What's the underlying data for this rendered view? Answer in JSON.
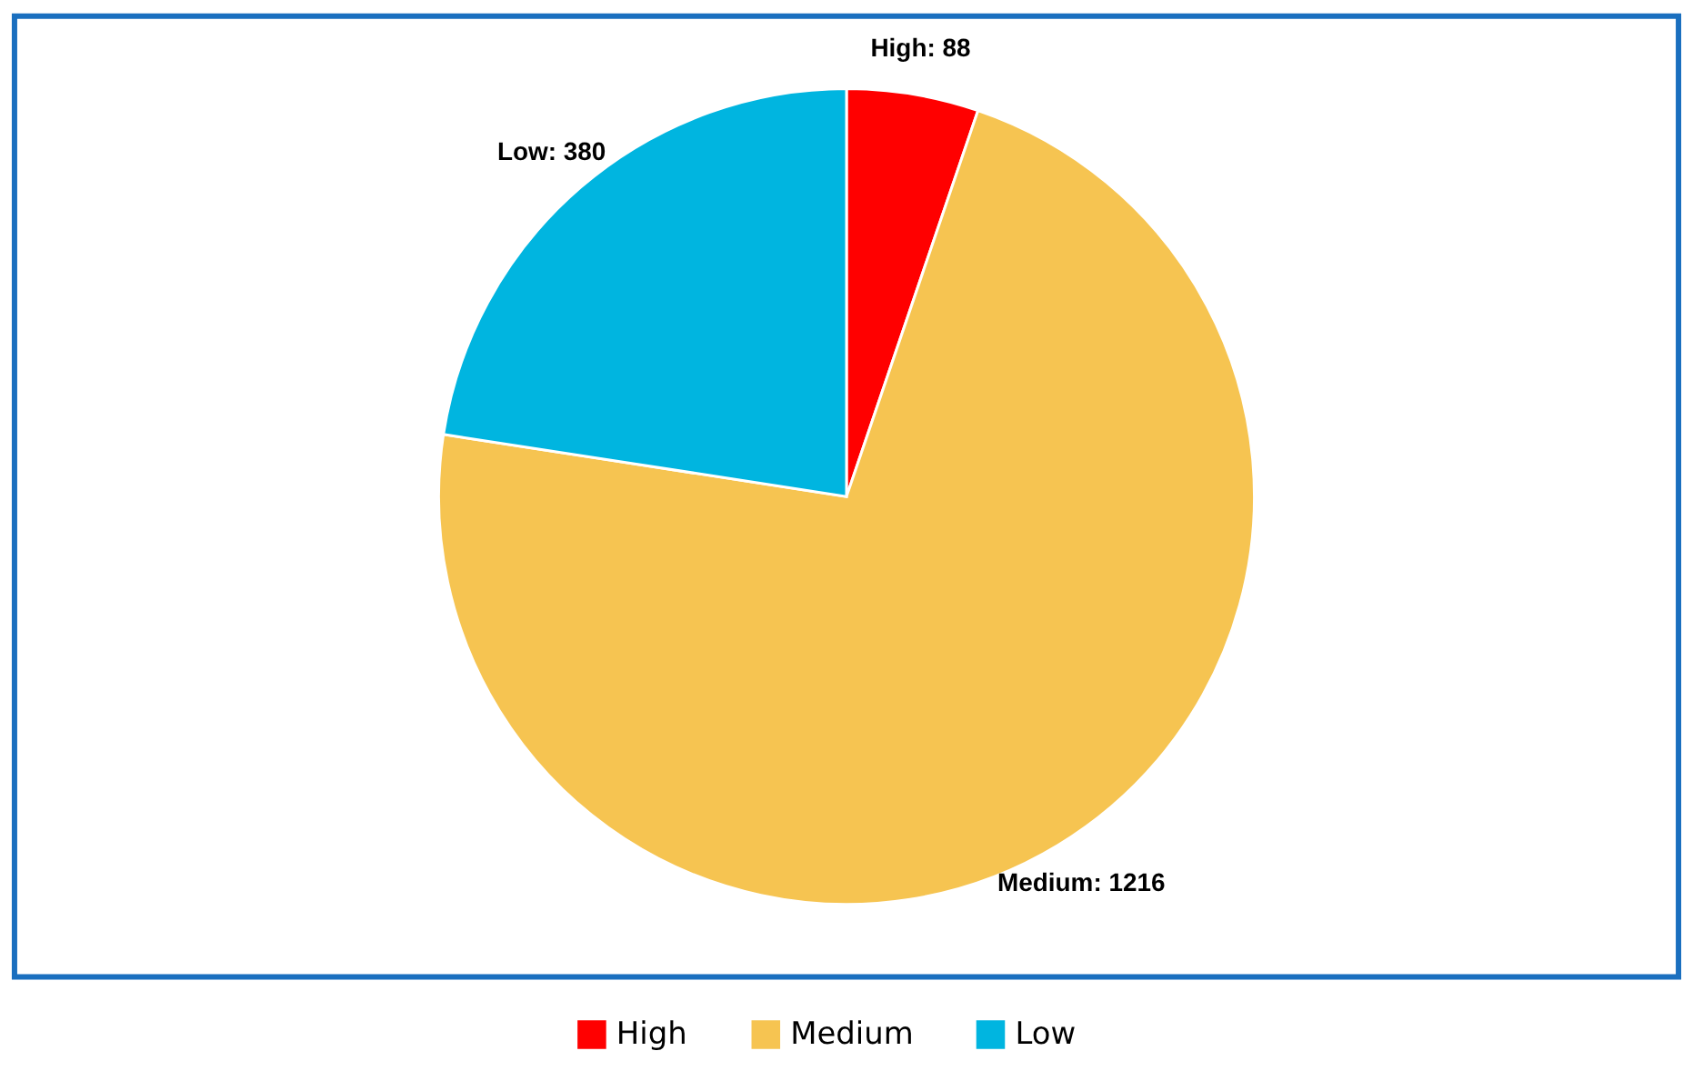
{
  "chart_data": {
    "type": "pie",
    "categories": [
      "High",
      "Medium",
      "Low"
    ],
    "values": [
      88,
      1216,
      380
    ],
    "value_labels": [
      "High: 88",
      "Medium: 1216",
      "Low: 380"
    ],
    "colors": [
      "#ff0000",
      "#f6c451",
      "#00b5e0"
    ],
    "legend": "bottom"
  }
}
